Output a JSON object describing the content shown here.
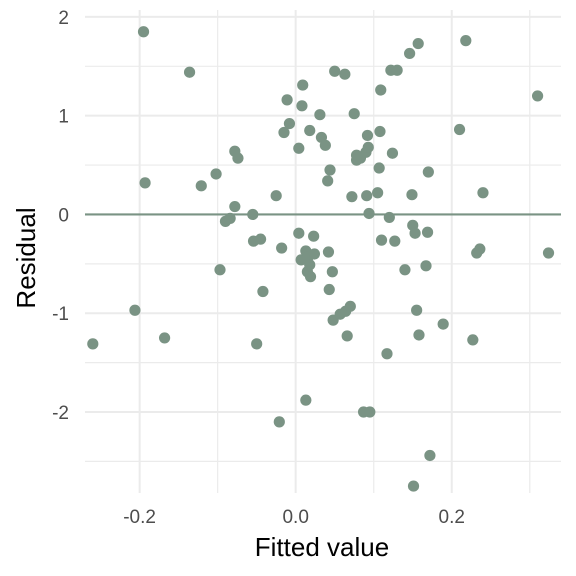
{
  "chart_data": {
    "type": "scatter",
    "xlabel": "Fitted value",
    "ylabel": "Residual",
    "xlim": [
      -0.27,
      0.34
    ],
    "ylim": [
      -2.82,
      2.07
    ],
    "x_ticks": [
      -0.2,
      0.0,
      0.2
    ],
    "x_tick_labels": [
      "-0.2",
      "0.0",
      "0.2"
    ],
    "y_ticks": [
      -2,
      -1,
      0,
      1,
      2
    ],
    "y_tick_labels": [
      "-2",
      "-1",
      "0",
      "1",
      "2"
    ],
    "grid": true,
    "reference_line": 0,
    "colors": {
      "points": "#7a9384",
      "reference_line": "#7a9384",
      "grid": "#ebebeb"
    },
    "points": [
      {
        "x": -0.26,
        "y": -1.31
      },
      {
        "x": -0.206,
        "y": -0.97
      },
      {
        "x": -0.195,
        "y": 1.85
      },
      {
        "x": -0.193,
        "y": 0.32
      },
      {
        "x": -0.168,
        "y": -1.25
      },
      {
        "x": -0.136,
        "y": 1.44
      },
      {
        "x": -0.121,
        "y": 0.29
      },
      {
        "x": -0.102,
        "y": 0.41
      },
      {
        "x": -0.097,
        "y": -0.56
      },
      {
        "x": -0.09,
        "y": -0.07
      },
      {
        "x": -0.084,
        "y": -0.04
      },
      {
        "x": -0.078,
        "y": 0.08
      },
      {
        "x": -0.078,
        "y": 0.64
      },
      {
        "x": -0.074,
        "y": 0.57
      },
      {
        "x": -0.055,
        "y": 0.0
      },
      {
        "x": -0.054,
        "y": -0.27
      },
      {
        "x": -0.05,
        "y": -1.31
      },
      {
        "x": -0.045,
        "y": -0.25
      },
      {
        "x": -0.042,
        "y": -0.78
      },
      {
        "x": -0.025,
        "y": 0.19
      },
      {
        "x": -0.021,
        "y": -2.1
      },
      {
        "x": -0.018,
        "y": -0.34
      },
      {
        "x": -0.015,
        "y": 0.83
      },
      {
        "x": -0.011,
        "y": 1.16
      },
      {
        "x": -0.008,
        "y": 0.92
      },
      {
        "x": 0.004,
        "y": 0.67
      },
      {
        "x": 0.004,
        "y": -0.19
      },
      {
        "x": 0.007,
        "y": -0.46
      },
      {
        "x": 0.008,
        "y": 1.1
      },
      {
        "x": 0.009,
        "y": 1.31
      },
      {
        "x": 0.013,
        "y": -0.37
      },
      {
        "x": 0.013,
        "y": -1.88
      },
      {
        "x": 0.015,
        "y": -0.58
      },
      {
        "x": 0.016,
        "y": -0.43
      },
      {
        "x": 0.018,
        "y": 0.85
      },
      {
        "x": 0.018,
        "y": -0.51
      },
      {
        "x": 0.019,
        "y": -0.63
      },
      {
        "x": 0.023,
        "y": -0.22
      },
      {
        "x": 0.024,
        "y": -0.4
      },
      {
        "x": 0.031,
        "y": 1.01
      },
      {
        "x": 0.033,
        "y": 0.78
      },
      {
        "x": 0.038,
        "y": 0.7
      },
      {
        "x": 0.041,
        "y": 0.34
      },
      {
        "x": 0.042,
        "y": -0.38
      },
      {
        "x": 0.043,
        "y": -0.76
      },
      {
        "x": 0.044,
        "y": 0.45
      },
      {
        "x": 0.047,
        "y": -0.58
      },
      {
        "x": 0.048,
        "y": -1.07
      },
      {
        "x": 0.05,
        "y": 1.45
      },
      {
        "x": 0.057,
        "y": -1.01
      },
      {
        "x": 0.063,
        "y": 1.42
      },
      {
        "x": 0.064,
        "y": -0.98
      },
      {
        "x": 0.066,
        "y": -1.23
      },
      {
        "x": 0.07,
        "y": -0.93
      },
      {
        "x": 0.072,
        "y": 0.18
      },
      {
        "x": 0.075,
        "y": 1.02
      },
      {
        "x": 0.078,
        "y": 0.6
      },
      {
        "x": 0.078,
        "y": 0.55
      },
      {
        "x": 0.083,
        "y": 0.57
      },
      {
        "x": 0.087,
        "y": -2.0
      },
      {
        "x": 0.09,
        "y": 0.63
      },
      {
        "x": 0.091,
        "y": 0.19
      },
      {
        "x": 0.092,
        "y": 0.8
      },
      {
        "x": 0.093,
        "y": 0.68
      },
      {
        "x": 0.094,
        "y": 0.01
      },
      {
        "x": 0.095,
        "y": -2.0
      },
      {
        "x": 0.105,
        "y": 0.22
      },
      {
        "x": 0.107,
        "y": 0.47
      },
      {
        "x": 0.108,
        "y": 0.84
      },
      {
        "x": 0.109,
        "y": 1.26
      },
      {
        "x": 0.11,
        "y": -0.26
      },
      {
        "x": 0.117,
        "y": -1.41
      },
      {
        "x": 0.12,
        "y": -0.03
      },
      {
        "x": 0.122,
        "y": 1.46
      },
      {
        "x": 0.124,
        "y": 0.62
      },
      {
        "x": 0.127,
        "y": -0.27
      },
      {
        "x": 0.13,
        "y": 1.46
      },
      {
        "x": 0.14,
        "y": -0.56
      },
      {
        "x": 0.146,
        "y": 1.63
      },
      {
        "x": 0.149,
        "y": 0.2
      },
      {
        "x": 0.15,
        "y": -0.11
      },
      {
        "x": 0.151,
        "y": -2.75
      },
      {
        "x": 0.153,
        "y": -0.19
      },
      {
        "x": 0.155,
        "y": -0.97
      },
      {
        "x": 0.158,
        "y": -1.22
      },
      {
        "x": 0.157,
        "y": 1.73
      },
      {
        "x": 0.167,
        "y": -0.52
      },
      {
        "x": 0.169,
        "y": -0.18
      },
      {
        "x": 0.17,
        "y": 0.43
      },
      {
        "x": 0.172,
        "y": -2.44
      },
      {
        "x": 0.189,
        "y": -1.11
      },
      {
        "x": 0.21,
        "y": 0.86
      },
      {
        "x": 0.218,
        "y": 1.76
      },
      {
        "x": 0.227,
        "y": -1.27
      },
      {
        "x": 0.232,
        "y": -0.39
      },
      {
        "x": 0.236,
        "y": -0.35
      },
      {
        "x": 0.24,
        "y": 0.22
      },
      {
        "x": 0.31,
        "y": 1.2
      },
      {
        "x": 0.324,
        "y": -0.39
      }
    ]
  }
}
